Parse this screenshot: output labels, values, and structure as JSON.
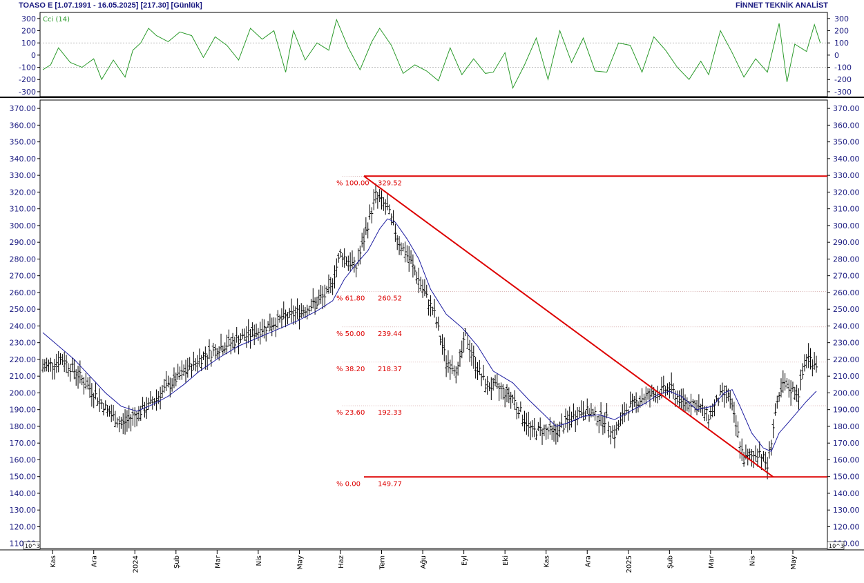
{
  "header": {
    "title": "TOASO E  [1.07.1991 - 16.05.2025]  [217.30]  [Günlük]",
    "brand": "FİNNET TEKNİK ANALİST"
  },
  "colors": {
    "price_bars": "#000000",
    "moving_average": "#1c1ca0",
    "cci_line": "#2a9a2a",
    "fib_lines": "#dd0000",
    "axis_text": "#1a1a80"
  },
  "cci_panel": {
    "label": "Cci (14)",
    "ticks": [
      "300",
      "200",
      "100",
      "0",
      "-100",
      "-200",
      "-300"
    ],
    "tick_values": [
      300,
      200,
      100,
      0,
      -100,
      -200,
      -300
    ],
    "ylim": [
      -340,
      350
    ],
    "dotted_levels": [
      100,
      -100
    ]
  },
  "chart_data": {
    "type": "candlestick",
    "title": "TOASO E  [1.07.1991 - 16.05.2025]  [217.30]  [Günlük]",
    "xlabel": "",
    "ylabel": "",
    "ylim": [
      107,
      375
    ],
    "y_ticks": [
      "370.00",
      "360.00",
      "350.00",
      "340.00",
      "330.00",
      "320.00",
      "310.00",
      "300.00",
      "290.00",
      "280.00",
      "270.00",
      "260.00",
      "250.00",
      "240.00",
      "230.00",
      "220.00",
      "210.00",
      "200.00",
      "190.00",
      "180.00",
      "170.00",
      "160.00",
      "150.00",
      "140.00",
      "130.00",
      "120.00",
      "110.00"
    ],
    "y_tick_values": [
      370,
      360,
      350,
      340,
      330,
      320,
      310,
      300,
      290,
      280,
      270,
      260,
      250,
      240,
      230,
      220,
      210,
      200,
      190,
      180,
      170,
      160,
      150,
      140,
      130,
      120,
      110
    ],
    "scale_note": "10^3",
    "x_labels": [
      "Kas",
      "Ara",
      "2024",
      "Şub",
      "Mar",
      "Nis",
      "May",
      "Haz",
      "Tem",
      "Ağu",
      "Eyl",
      "Eki",
      "Kas",
      "Ara",
      "2025",
      "Şub",
      "Mar",
      "Nis",
      "May"
    ],
    "x_label_positions": [
      5,
      26,
      47,
      68,
      89,
      110,
      131,
      152,
      173,
      194,
      215,
      236,
      257,
      278,
      299,
      320,
      341,
      362,
      383
    ],
    "x_max": 395,
    "last_value": 217.3,
    "price_path": [
      [
        0,
        215
      ],
      [
        10,
        220
      ],
      [
        18,
        211
      ],
      [
        26,
        200
      ],
      [
        34,
        188
      ],
      [
        40,
        181
      ],
      [
        46,
        186
      ],
      [
        54,
        192
      ],
      [
        62,
        202
      ],
      [
        70,
        210
      ],
      [
        80,
        220
      ],
      [
        90,
        227
      ],
      [
        100,
        232
      ],
      [
        110,
        237
      ],
      [
        120,
        243
      ],
      [
        130,
        248
      ],
      [
        140,
        254
      ],
      [
        146,
        260
      ],
      [
        152,
        283
      ],
      [
        160,
        275
      ],
      [
        164,
        292
      ],
      [
        170,
        318
      ],
      [
        176,
        310
      ],
      [
        182,
        290
      ],
      [
        188,
        278
      ],
      [
        194,
        262
      ],
      [
        200,
        247
      ],
      [
        206,
        219
      ],
      [
        212,
        214
      ],
      [
        216,
        234
      ],
      [
        220,
        220
      ],
      [
        226,
        205
      ],
      [
        234,
        202
      ],
      [
        240,
        197
      ],
      [
        246,
        184
      ],
      [
        250,
        177
      ],
      [
        256,
        178
      ],
      [
        262,
        176
      ],
      [
        268,
        183
      ],
      [
        276,
        190
      ],
      [
        282,
        186
      ],
      [
        288,
        184
      ],
      [
        292,
        175
      ],
      [
        298,
        190
      ],
      [
        306,
        197
      ],
      [
        314,
        200
      ],
      [
        320,
        203
      ],
      [
        326,
        195
      ],
      [
        332,
        194
      ],
      [
        340,
        186
      ],
      [
        346,
        198
      ],
      [
        350,
        200
      ],
      [
        354,
        180
      ],
      [
        358,
        160
      ],
      [
        362,
        162
      ],
      [
        366,
        165
      ],
      [
        370,
        156
      ],
      [
        374,
        188
      ],
      [
        378,
        204
      ],
      [
        386,
        200
      ],
      [
        390,
        222
      ],
      [
        395,
        217.3
      ]
    ],
    "moving_average": [
      [
        0,
        236
      ],
      [
        8,
        228
      ],
      [
        16,
        220
      ],
      [
        24,
        210
      ],
      [
        32,
        200
      ],
      [
        40,
        192
      ],
      [
        48,
        189
      ],
      [
        56,
        193
      ],
      [
        64,
        198
      ],
      [
        72,
        205
      ],
      [
        80,
        213
      ],
      [
        90,
        221
      ],
      [
        100,
        228
      ],
      [
        110,
        233
      ],
      [
        120,
        238
      ],
      [
        130,
        243
      ],
      [
        140,
        249
      ],
      [
        148,
        255
      ],
      [
        154,
        268
      ],
      [
        160,
        277
      ],
      [
        166,
        285
      ],
      [
        172,
        298
      ],
      [
        176,
        304
      ],
      [
        180,
        302
      ],
      [
        186,
        292
      ],
      [
        192,
        280
      ],
      [
        198,
        262
      ],
      [
        206,
        247
      ],
      [
        214,
        239
      ],
      [
        222,
        228
      ],
      [
        230,
        213
      ],
      [
        240,
        206
      ],
      [
        248,
        196
      ],
      [
        256,
        187
      ],
      [
        262,
        180
      ],
      [
        268,
        182
      ],
      [
        276,
        186
      ],
      [
        284,
        187
      ],
      [
        292,
        184
      ],
      [
        300,
        189
      ],
      [
        308,
        194
      ],
      [
        314,
        199
      ],
      [
        320,
        201
      ],
      [
        326,
        198
      ],
      [
        334,
        190
      ],
      [
        342,
        192
      ],
      [
        348,
        200
      ],
      [
        352,
        202
      ],
      [
        356,
        192
      ],
      [
        362,
        176
      ],
      [
        368,
        167
      ],
      [
        372,
        165
      ],
      [
        376,
        176
      ],
      [
        382,
        184
      ],
      [
        390,
        195
      ],
      [
        395,
        201
      ]
    ],
    "cci_path": [
      [
        0,
        -120
      ],
      [
        4,
        -80
      ],
      [
        8,
        60
      ],
      [
        14,
        -60
      ],
      [
        20,
        -100
      ],
      [
        26,
        -30
      ],
      [
        30,
        -200
      ],
      [
        36,
        -40
      ],
      [
        42,
        -180
      ],
      [
        46,
        40
      ],
      [
        50,
        100
      ],
      [
        54,
        220
      ],
      [
        58,
        160
      ],
      [
        64,
        110
      ],
      [
        70,
        190
      ],
      [
        76,
        160
      ],
      [
        82,
        -20
      ],
      [
        88,
        150
      ],
      [
        94,
        80
      ],
      [
        100,
        -40
      ],
      [
        106,
        220
      ],
      [
        112,
        130
      ],
      [
        118,
        200
      ],
      [
        124,
        -140
      ],
      [
        128,
        200
      ],
      [
        134,
        -40
      ],
      [
        140,
        100
      ],
      [
        146,
        40
      ],
      [
        150,
        290
      ],
      [
        156,
        60
      ],
      [
        162,
        -120
      ],
      [
        168,
        110
      ],
      [
        172,
        220
      ],
      [
        178,
        80
      ],
      [
        184,
        -150
      ],
      [
        190,
        -80
      ],
      [
        196,
        -130
      ],
      [
        202,
        -210
      ],
      [
        208,
        60
      ],
      [
        214,
        -160
      ],
      [
        220,
        -30
      ],
      [
        226,
        -150
      ],
      [
        230,
        -140
      ],
      [
        236,
        20
      ],
      [
        240,
        -270
      ],
      [
        246,
        -80
      ],
      [
        252,
        140
      ],
      [
        258,
        -200
      ],
      [
        264,
        200
      ],
      [
        270,
        -60
      ],
      [
        276,
        140
      ],
      [
        282,
        -130
      ],
      [
        288,
        -140
      ],
      [
        294,
        100
      ],
      [
        300,
        80
      ],
      [
        306,
        -140
      ],
      [
        312,
        150
      ],
      [
        318,
        40
      ],
      [
        324,
        -100
      ],
      [
        330,
        -200
      ],
      [
        336,
        -50
      ],
      [
        340,
        -160
      ],
      [
        346,
        200
      ],
      [
        352,
        20
      ],
      [
        358,
        -180
      ],
      [
        364,
        -30
      ],
      [
        370,
        -140
      ],
      [
        376,
        260
      ],
      [
        380,
        -220
      ],
      [
        384,
        90
      ],
      [
        390,
        30
      ],
      [
        394,
        250
      ],
      [
        397,
        100
      ]
    ],
    "fibonacci": {
      "start_index": 164,
      "end_index": 373,
      "line_start_index": 164,
      "line_end_index": 395,
      "levels": [
        {
          "label": "% 100.00",
          "value_text": "329.52",
          "value": 329.52
        },
        {
          "label": "% 61.80",
          "value_text": "260.52",
          "value": 260.52
        },
        {
          "label": "% 50.00",
          "value_text": "239.44",
          "value": 239.44
        },
        {
          "label": "% 38.20",
          "value_text": "218.37",
          "value": 218.37
        },
        {
          "label": "% 23.60",
          "value_text": "192.33",
          "value": 192.33
        },
        {
          "label": "% 0.00",
          "value_text": "149.77",
          "value": 149.77
        }
      ]
    }
  }
}
